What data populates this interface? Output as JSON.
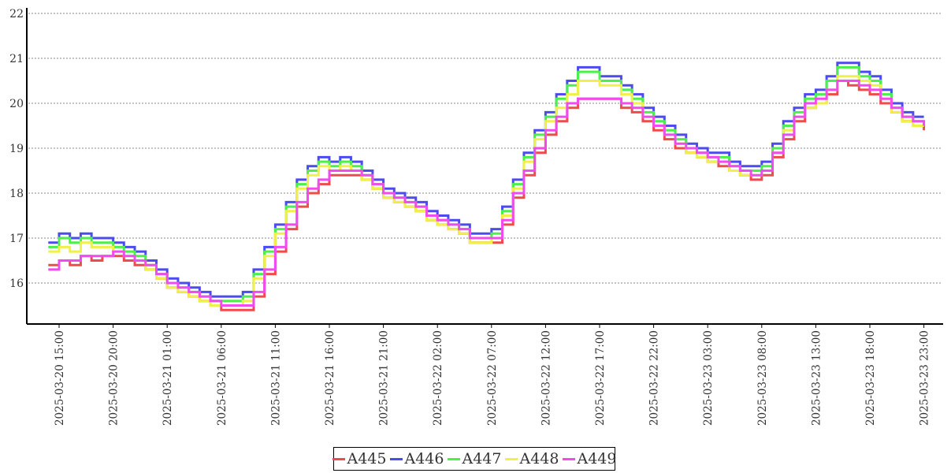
{
  "chart_data": {
    "type": "line",
    "title": "",
    "xlabel": "",
    "ylabel": "",
    "x_unit": "hours since 2025-03-20 15:00",
    "x_start_hour": -1,
    "x_step_hours": 1,
    "xlim": [
      -2,
      81
    ],
    "ylim": [
      15.09,
      22.12
    ],
    "grid": "horizontal-dotted",
    "legend_position": "bottom-center",
    "y_ticks": [
      "16",
      "17",
      "18",
      "19",
      "20",
      "21",
      "22"
    ],
    "y_tick_values": [
      16,
      17,
      18,
      19,
      20,
      21,
      22
    ],
    "x_ticks": [
      {
        "hour": 0,
        "label": "2025-03-20  15:00"
      },
      {
        "hour": 5,
        "label": "2025-03-20  20:00"
      },
      {
        "hour": 10,
        "label": "2025-03-21  01:00"
      },
      {
        "hour": 15,
        "label": "2025-03-21  06:00"
      },
      {
        "hour": 20,
        "label": "2025-03-21  11:00"
      },
      {
        "hour": 25,
        "label": "2025-03-21  16:00"
      },
      {
        "hour": 30,
        "label": "2025-03-21  21:00"
      },
      {
        "hour": 35,
        "label": "2025-03-22  02:00"
      },
      {
        "hour": 40,
        "label": "2025-03-22  07:00"
      },
      {
        "hour": 45,
        "label": "2025-03-22  12:00"
      },
      {
        "hour": 50,
        "label": "2025-03-22  17:00"
      },
      {
        "hour": 55,
        "label": "2025-03-22  22:00"
      },
      {
        "hour": 60,
        "label": "2025-03-23  03:00"
      },
      {
        "hour": 65,
        "label": "2025-03-23  08:00"
      },
      {
        "hour": 70,
        "label": "2025-03-23  13:00"
      },
      {
        "hour": 75,
        "label": "2025-03-23  18:00"
      },
      {
        "hour": 80,
        "label": "2025-03-23  23:00"
      }
    ],
    "series": [
      {
        "name": "A445",
        "color": "#f04b4b",
        "values": [
          16.4,
          16.5,
          16.4,
          16.6,
          16.5,
          16.6,
          16.6,
          16.5,
          16.4,
          16.3,
          16.1,
          15.9,
          15.8,
          15.7,
          15.6,
          15.5,
          15.4,
          15.4,
          15.4,
          15.7,
          16.2,
          16.7,
          17.2,
          17.7,
          18.0,
          18.2,
          18.4,
          18.4,
          18.4,
          18.3,
          18.1,
          17.9,
          17.8,
          17.7,
          17.6,
          17.4,
          17.3,
          17.2,
          17.1,
          16.9,
          16.9,
          16.9,
          17.3,
          17.9,
          18.4,
          18.9,
          19.3,
          19.6,
          19.9,
          20.1,
          20.1,
          20.1,
          20.1,
          19.9,
          19.8,
          19.6,
          19.4,
          19.2,
          19.0,
          18.9,
          18.8,
          18.7,
          18.6,
          18.5,
          18.4,
          18.3,
          18.4,
          18.8,
          19.2,
          19.6,
          19.9,
          20.0,
          20.2,
          20.5,
          20.4,
          20.3,
          20.2,
          20.0,
          19.8,
          19.6,
          19.5,
          19.4
        ]
      },
      {
        "name": "A446",
        "color": "#4b4bf0",
        "values": [
          16.9,
          17.1,
          17.0,
          17.1,
          17.0,
          17.0,
          16.9,
          16.8,
          16.7,
          16.5,
          16.3,
          16.1,
          16.0,
          15.9,
          15.8,
          15.7,
          15.7,
          15.7,
          15.8,
          16.3,
          16.8,
          17.3,
          17.8,
          18.3,
          18.6,
          18.8,
          18.7,
          18.8,
          18.7,
          18.5,
          18.3,
          18.1,
          18.0,
          17.9,
          17.8,
          17.6,
          17.5,
          17.4,
          17.3,
          17.1,
          17.1,
          17.2,
          17.7,
          18.3,
          18.9,
          19.4,
          19.8,
          20.2,
          20.5,
          20.8,
          20.8,
          20.6,
          20.6,
          20.4,
          20.2,
          19.9,
          19.7,
          19.5,
          19.3,
          19.1,
          19.0,
          18.9,
          18.9,
          18.7,
          18.6,
          18.6,
          18.7,
          19.1,
          19.6,
          19.9,
          20.2,
          20.3,
          20.6,
          20.9,
          20.9,
          20.7,
          20.6,
          20.3,
          20.0,
          19.8,
          19.7,
          19.7
        ]
      },
      {
        "name": "A447",
        "color": "#4bf04b",
        "values": [
          16.8,
          17.0,
          16.9,
          17.0,
          16.9,
          16.9,
          16.8,
          16.7,
          16.6,
          16.4,
          16.2,
          16.0,
          15.9,
          15.8,
          15.7,
          15.6,
          15.6,
          15.6,
          15.7,
          16.2,
          16.7,
          17.2,
          17.7,
          18.2,
          18.5,
          18.7,
          18.6,
          18.7,
          18.6,
          18.4,
          18.2,
          18.0,
          17.9,
          17.8,
          17.7,
          17.5,
          17.4,
          17.3,
          17.2,
          17.0,
          17.0,
          17.1,
          17.6,
          18.2,
          18.8,
          19.3,
          19.7,
          20.1,
          20.4,
          20.7,
          20.7,
          20.5,
          20.5,
          20.3,
          20.1,
          19.8,
          19.6,
          19.4,
          19.2,
          19.0,
          18.9,
          18.8,
          18.8,
          18.6,
          18.5,
          18.5,
          18.6,
          19.0,
          19.5,
          19.8,
          20.1,
          20.2,
          20.5,
          20.8,
          20.8,
          20.6,
          20.5,
          20.2,
          19.9,
          19.7,
          19.6,
          19.6
        ]
      },
      {
        "name": "A448",
        "color": "#f0f04b",
        "values": [
          16.7,
          16.8,
          16.7,
          16.9,
          16.8,
          16.8,
          16.7,
          16.6,
          16.5,
          16.3,
          16.1,
          15.9,
          15.8,
          15.7,
          15.6,
          15.5,
          15.5,
          15.5,
          15.6,
          16.1,
          16.6,
          17.1,
          17.6,
          18.1,
          18.4,
          18.6,
          18.5,
          18.6,
          18.5,
          18.3,
          18.1,
          17.9,
          17.8,
          17.7,
          17.6,
          17.4,
          17.3,
          17.2,
          17.1,
          16.9,
          16.9,
          17.0,
          17.5,
          18.1,
          18.7,
          19.2,
          19.6,
          19.9,
          20.2,
          20.5,
          20.5,
          20.4,
          20.4,
          20.2,
          20.0,
          19.7,
          19.5,
          19.3,
          19.1,
          18.9,
          18.8,
          18.7,
          18.7,
          18.5,
          18.4,
          18.4,
          18.5,
          18.9,
          19.4,
          19.7,
          19.9,
          20.0,
          20.3,
          20.6,
          20.6,
          20.5,
          20.4,
          20.1,
          19.8,
          19.6,
          19.5,
          19.5
        ]
      },
      {
        "name": "A449",
        "color": "#f04bf0",
        "values": [
          16.3,
          16.5,
          16.5,
          16.6,
          16.6,
          16.6,
          16.7,
          16.6,
          16.5,
          16.4,
          16.2,
          16.0,
          15.9,
          15.8,
          15.7,
          15.6,
          15.5,
          15.5,
          15.5,
          15.8,
          16.3,
          16.8,
          17.3,
          17.8,
          18.1,
          18.3,
          18.5,
          18.5,
          18.5,
          18.4,
          18.2,
          18.0,
          17.9,
          17.8,
          17.7,
          17.5,
          17.4,
          17.3,
          17.2,
          17.0,
          17.0,
          17.0,
          17.4,
          18.0,
          18.5,
          19.0,
          19.4,
          19.7,
          20.0,
          20.1,
          20.1,
          20.1,
          20.1,
          20.0,
          19.9,
          19.7,
          19.5,
          19.3,
          19.1,
          19.0,
          18.9,
          18.8,
          18.7,
          18.6,
          18.5,
          18.4,
          18.5,
          18.9,
          19.3,
          19.7,
          20.0,
          20.1,
          20.3,
          20.5,
          20.5,
          20.4,
          20.3,
          20.1,
          19.9,
          19.7,
          19.6,
          19.5
        ]
      }
    ]
  }
}
